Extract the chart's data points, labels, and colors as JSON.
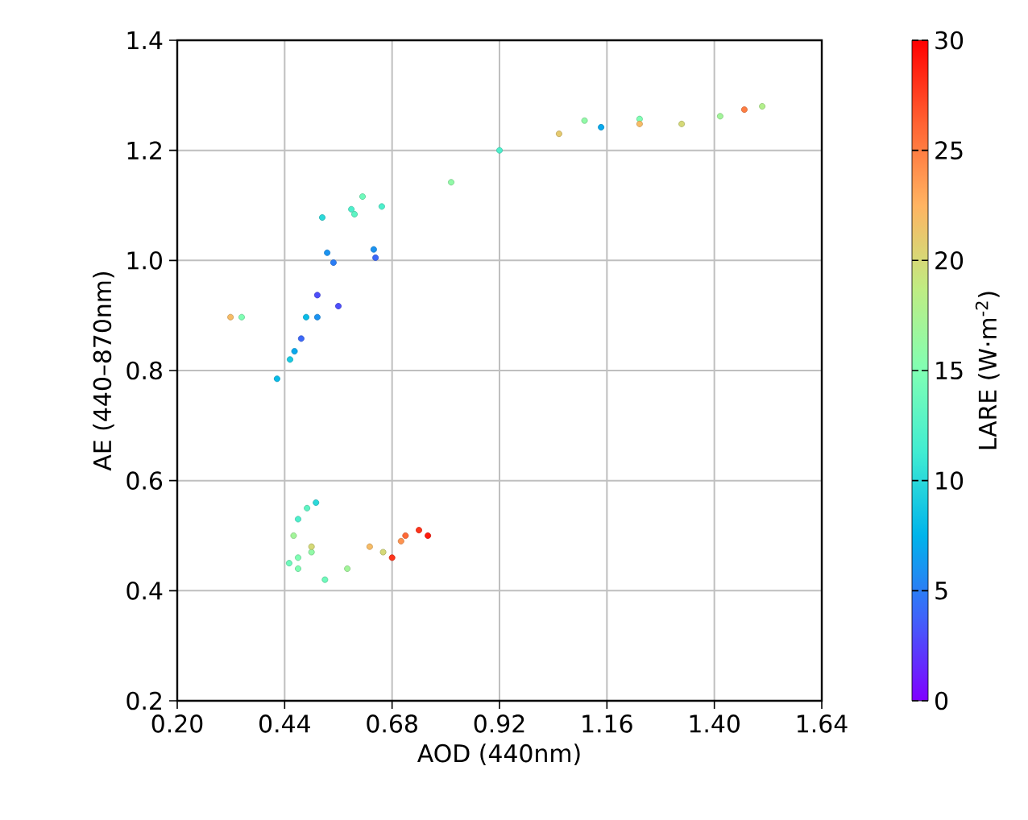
{
  "chart_data": {
    "type": "scatter",
    "marker": "circle",
    "xlabel": "AOD (440nm)",
    "ylabel": "AE (440–870nm)",
    "clabel": "LARE (W·m$^{-2}$)",
    "xlim": [
      0.2,
      1.64
    ],
    "xticks": [
      {
        "value": 0.2,
        "label": "0.20"
      },
      0.44,
      0.68,
      0.92,
      1.16,
      {
        "value": 1.4,
        "label": "1.40"
      },
      1.64
    ],
    "ylim": [
      0.2,
      1.4
    ],
    "yticks": [
      0.2,
      0.4,
      0.6,
      0.8,
      {
        "value": 1.0,
        "label": "1.0"
      },
      1.2,
      1.4
    ],
    "clim": [
      0,
      30
    ],
    "cticks": [
      0,
      5,
      10,
      15,
      20,
      25,
      30
    ],
    "grid": true,
    "series": [
      {
        "x": [
          0.319,
          0.344,
          0.423,
          0.462,
          0.477,
          0.513,
          0.549,
          0.639,
          0.643,
          0.56,
          0.513,
          0.452,
          0.488,
          0.535,
          0.589,
          0.524,
          0.614,
          0.657,
          0.596,
          0.812,
          0.92,
          1.053,
          1.11,
          1.233,
          1.147,
          1.233,
          1.327,
          1.413,
          1.467,
          1.507
        ],
        "values": [
          0.897,
          0.897,
          0.785,
          0.835,
          0.858,
          0.937,
          0.996,
          1.02,
          1.005,
          0.917,
          0.897,
          0.82,
          0.897,
          1.014,
          1.093,
          1.078,
          1.116,
          1.098,
          1.084,
          1.142,
          1.2,
          1.23,
          1.254,
          1.257,
          1.242,
          1.248,
          1.248,
          1.262,
          1.274,
          1.28
        ],
        "cvalues": [
          22,
          15,
          8,
          7,
          4,
          3,
          5,
          6,
          4,
          3,
          6,
          9,
          8,
          6,
          12,
          10,
          14,
          12,
          13,
          16,
          12,
          21,
          16,
          15,
          7,
          22,
          20,
          17,
          25,
          18
        ],
        "colors": [
          "#f7bc66",
          "#80ffb4",
          "#09bce8",
          "#09a9ed",
          "#3c68f9",
          "#4d4efb",
          "#2b7df5",
          "#1a93f1",
          "#3c68f9",
          "#4d4efb",
          "#1a93f1",
          "#1acae1",
          "#09bce8",
          "#1a93f1",
          "#4df0cc",
          "#2bd9da",
          "#6ffabc",
          "#4df0cc",
          "#5ef5c4",
          "#91faa7",
          "#4df0cc",
          "#e6ca6f",
          "#91faa7",
          "#80ffb4",
          "#09a9ed",
          "#f7bc66",
          "#d5d977",
          "#a2f599",
          "#ff7d42",
          "#b3f08c"
        ]
      },
      {
        "x": [
          0.47,
          0.46,
          0.49,
          0.47,
          0.51,
          0.5,
          0.45,
          0.47,
          0.5,
          0.53,
          0.58,
          0.63,
          0.66,
          0.7,
          0.68,
          0.71,
          0.74,
          0.76
        ],
        "values": [
          0.46,
          0.5,
          0.55,
          0.53,
          0.56,
          0.47,
          0.45,
          0.44,
          0.48,
          0.42,
          0.44,
          0.48,
          0.47,
          0.49,
          0.46,
          0.5,
          0.51,
          0.5
        ],
        "cvalues": [
          15,
          17,
          13,
          12,
          10,
          16,
          14,
          15,
          20,
          14,
          17,
          22,
          20,
          24,
          28,
          26,
          28,
          29
        ],
        "colors": [
          "#80ffb4",
          "#a2f599",
          "#5ef5c4",
          "#4df0cc",
          "#2bd9da",
          "#91faa7",
          "#6ffabc",
          "#80ffb4",
          "#d5d977",
          "#6ffabc",
          "#a2f599",
          "#f7bc66",
          "#d5d977",
          "#ff934f",
          "#ff341b",
          "#ff6835",
          "#ff341b",
          "#ff1a0d"
        ]
      }
    ]
  }
}
